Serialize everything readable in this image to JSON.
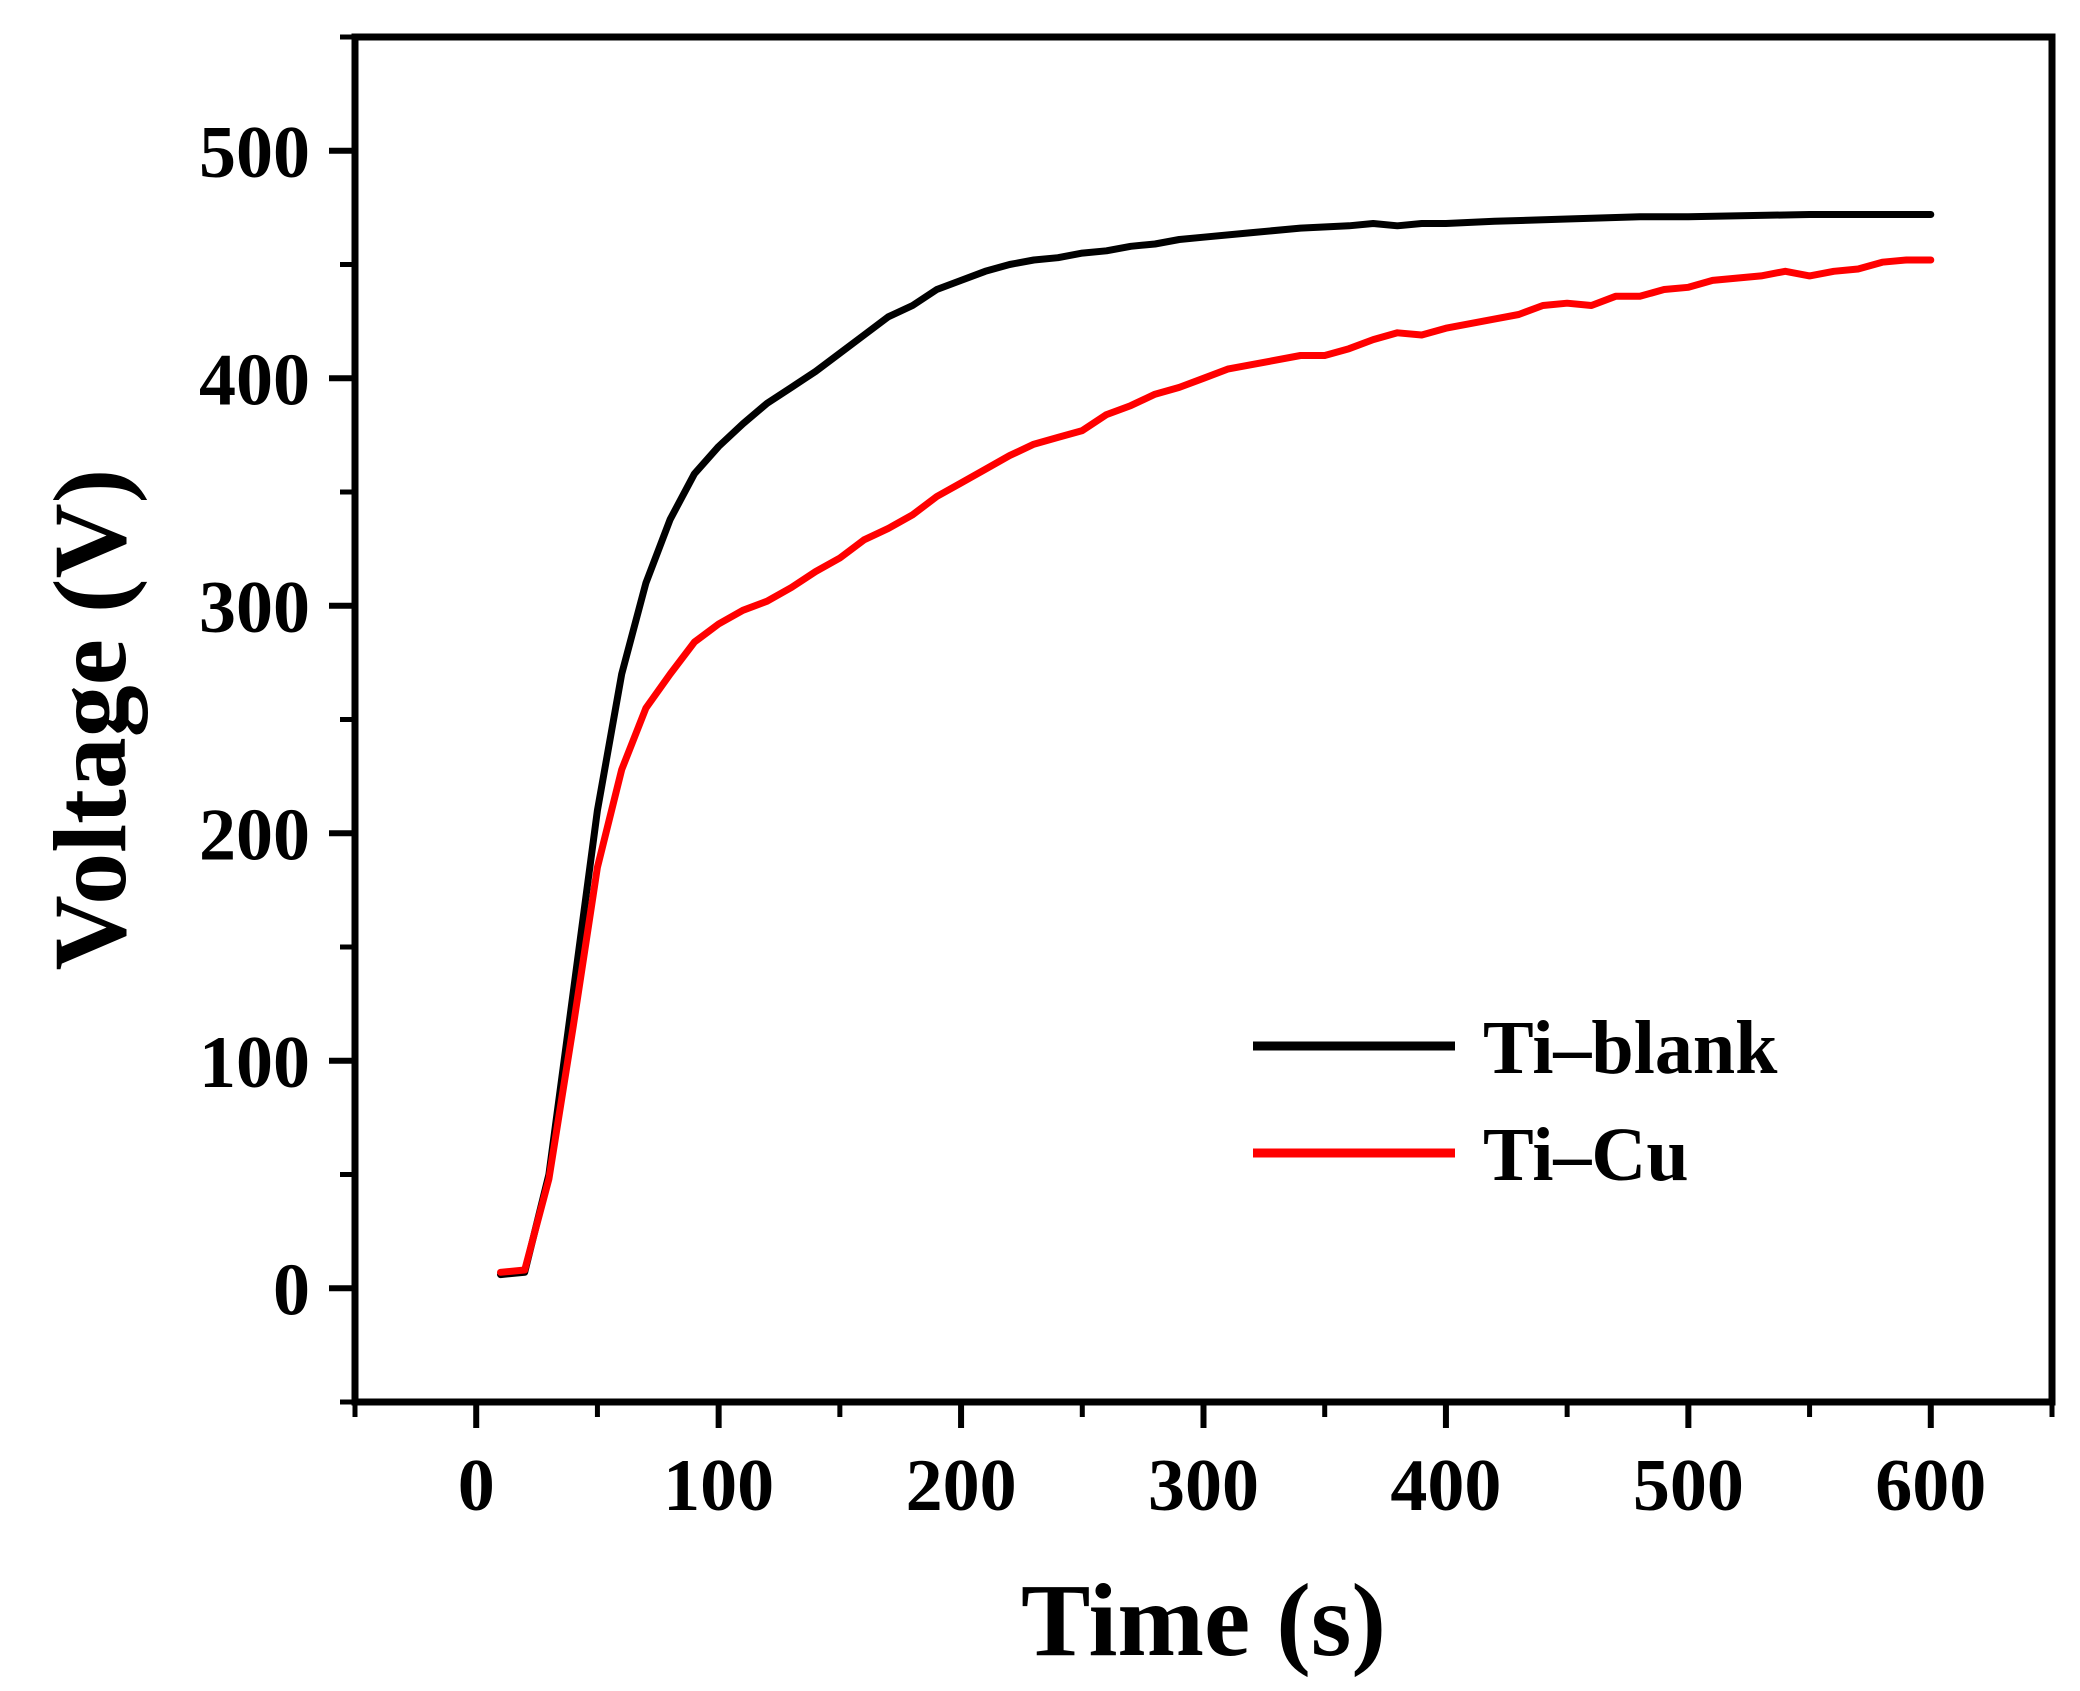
{
  "chart_data": {
    "type": "line",
    "title": "",
    "xlabel": "Time (s)",
    "ylabel": "Voltage (V)",
    "xlim": [
      -50,
      650
    ],
    "ylim": [
      -50,
      550
    ],
    "xticks": [
      0,
      100,
      200,
      300,
      400,
      500,
      600
    ],
    "yticks": [
      0,
      100,
      200,
      300,
      400,
      500
    ],
    "grid": false,
    "legend_position": "bottom-right",
    "series": [
      {
        "name": "Ti–blank",
        "color": "#000000",
        "x": [
          10,
          20,
          30,
          40,
          50,
          60,
          70,
          80,
          90,
          100,
          110,
          120,
          130,
          140,
          150,
          160,
          170,
          180,
          190,
          200,
          210,
          220,
          230,
          240,
          250,
          260,
          270,
          280,
          290,
          300,
          320,
          340,
          360,
          370,
          380,
          390,
          400,
          420,
          450,
          480,
          500,
          550,
          600
        ],
        "y": [
          6,
          7,
          50,
          130,
          210,
          270,
          310,
          338,
          358,
          370,
          380,
          389,
          396,
          403,
          411,
          419,
          427,
          432,
          439,
          443,
          447,
          450,
          452,
          453,
          455,
          456,
          458,
          459,
          461,
          462,
          464,
          466,
          467,
          468,
          467,
          468,
          468,
          469,
          470,
          471,
          471,
          472,
          472
        ]
      },
      {
        "name": "Ti–Cu",
        "color": "#ff0000",
        "x": [
          10,
          20,
          30,
          40,
          50,
          60,
          70,
          80,
          90,
          100,
          110,
          120,
          130,
          140,
          150,
          160,
          170,
          180,
          190,
          200,
          210,
          220,
          230,
          240,
          250,
          260,
          270,
          280,
          290,
          300,
          310,
          320,
          340,
          350,
          360,
          370,
          380,
          390,
          400,
          420,
          430,
          440,
          450,
          460,
          470,
          480,
          490,
          500,
          510,
          520,
          530,
          540,
          550,
          560,
          570,
          580,
          590,
          600
        ],
        "y": [
          7,
          8,
          48,
          115,
          185,
          228,
          255,
          270,
          284,
          292,
          298,
          302,
          308,
          315,
          321,
          329,
          334,
          340,
          348,
          354,
          360,
          366,
          371,
          374,
          377,
          384,
          388,
          393,
          396,
          400,
          404,
          406,
          410,
          410,
          413,
          417,
          420,
          419,
          422,
          426,
          428,
          432,
          433,
          432,
          436,
          436,
          439,
          440,
          443,
          444,
          445,
          447,
          445,
          447,
          448,
          451,
          452,
          452
        ]
      }
    ]
  }
}
